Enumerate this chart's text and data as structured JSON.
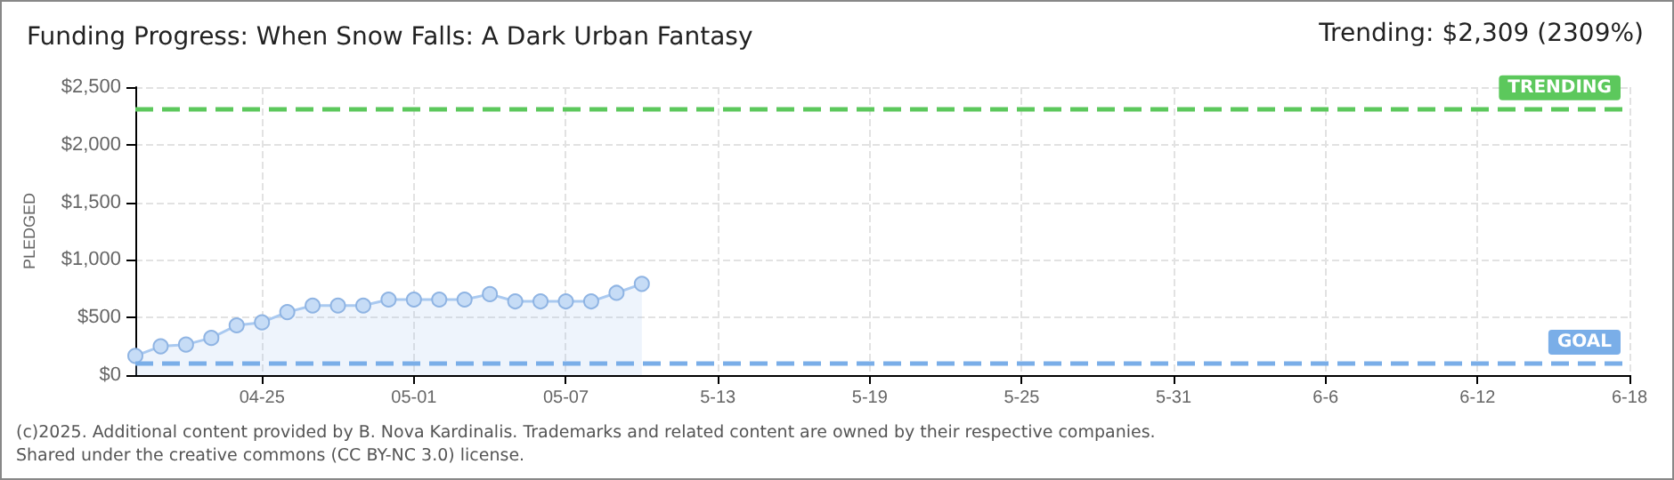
{
  "chart_data": {
    "type": "area",
    "title": "Funding Progress: When Snow Falls: A Dark Urban Fantasy",
    "subtitle": "Trending: $2,309 (2309%)",
    "ylabel": "PLEDGED",
    "x": [
      "2025-04-20",
      "2025-04-21",
      "2025-04-22",
      "2025-04-23",
      "2025-04-24",
      "2025-04-25",
      "2025-04-26",
      "2025-04-27",
      "2025-04-28",
      "2025-04-29",
      "2025-04-30",
      "2025-05-01",
      "2025-05-02",
      "2025-05-03",
      "2025-05-04",
      "2025-05-05",
      "2025-05-06",
      "2025-05-07",
      "2025-05-08",
      "2025-05-09",
      "2025-05-10"
    ],
    "series": [
      {
        "color": "#a9c9f0",
        "values": [
          167,
          250,
          265,
          323,
          432,
          458,
          547,
          604,
          604,
          604,
          656,
          656,
          656,
          656,
          703,
          640,
          640,
          640,
          640,
          714,
          792
        ]
      }
    ],
    "xlim": [
      "2025-04-20",
      "2025-06-18"
    ],
    "xticks": [
      {
        "value": "2025-04-25",
        "label": "04-25"
      },
      {
        "value": "2025-05-01",
        "label": "05-01"
      },
      {
        "value": "2025-05-07",
        "label": "05-07"
      },
      {
        "value": "2025-05-13",
        "label": "5-13"
      },
      {
        "value": "2025-05-19",
        "label": "5-19"
      },
      {
        "value": "2025-05-25",
        "label": "5-25"
      },
      {
        "value": "2025-05-31",
        "label": "5-31"
      },
      {
        "value": "2025-06-06",
        "label": "6-6"
      },
      {
        "value": "2025-06-12",
        "label": "6-12"
      },
      {
        "value": "2025-06-18",
        "label": "6-18"
      }
    ],
    "ylim": [
      0,
      2500
    ],
    "yticks": [
      {
        "value": 0,
        "label": "$0"
      },
      {
        "value": 500,
        "label": "$500"
      },
      {
        "value": 1000,
        "label": "$1,000"
      },
      {
        "value": 1500,
        "label": "$1,500"
      },
      {
        "value": 2000,
        "label": "$2,000"
      },
      {
        "value": 2500,
        "label": "$2,500"
      }
    ],
    "ref_lines": [
      {
        "axis": "y",
        "value": 2309,
        "label": "TRENDING",
        "color": "#5cc85c",
        "line_style": "dashed"
      },
      {
        "axis": "y",
        "value": 100,
        "label": "GOAL",
        "color": "#7aaee8",
        "line_style": "dashed"
      }
    ],
    "grid": true,
    "marker": "circle",
    "annotations": [
      "(c)2025. Additional content provided by B. Nova Kardinalis. Trademarks and related content are owned by their respective companies.",
      "Shared under the creative commons (CC BY-NC 3.0) license."
    ]
  }
}
